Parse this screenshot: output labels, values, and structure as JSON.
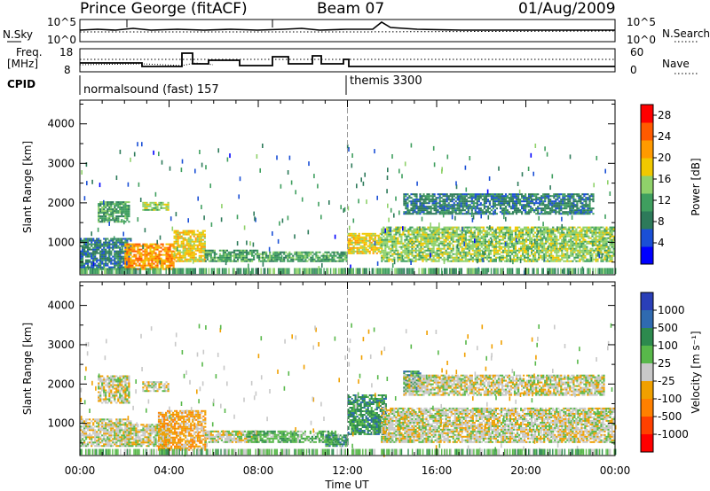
{
  "header": {
    "station": "Prince George (fitACF)",
    "beam": "Beam 07",
    "date": "01/Aug/2009"
  },
  "panels": {
    "nsky_label": "N.Sky",
    "nsearch_label": "N.Search",
    "nsky_ticks": [
      "10^5",
      "10^0"
    ],
    "nsearch_ticks": [
      "10^5",
      "10^0"
    ],
    "freq_label_1": "Freq.",
    "freq_label_2": "[MHz]",
    "freq_ticks": [
      "18",
      "8"
    ],
    "nave_label": "Nave",
    "nave_ticks": [
      "60",
      "0"
    ],
    "cpid_label": "CPID",
    "cpid_segments": [
      "normalsound (fast) 157",
      "themis 3300"
    ]
  },
  "colors": {
    "power_scale": [
      "#0000ff",
      "#1a4fd6",
      "#2d7a5a",
      "#3f9f5f",
      "#8fd16a",
      "#f0c800",
      "#ff9a00",
      "#ff5a00",
      "#ff0000"
    ],
    "velocity_scale": [
      "#2a3fb8",
      "#2f6ab0",
      "#2d8a4e",
      "#58b84a",
      "#c8c8c8",
      "#f0a000",
      "#ff8000",
      "#ff4000",
      "#ff0000"
    ]
  },
  "chart_data": [
    {
      "type": "heatmap",
      "name": "power",
      "xlabel": "",
      "ylabel": "Slant Range [km]",
      "x_ticks": [
        "00:00",
        "04:00",
        "08:00",
        "12:00",
        "16:00",
        "20:00",
        "00:00"
      ],
      "y_ticks": [
        1000,
        2000,
        3000,
        4000
      ],
      "ylim": [
        180,
        4600
      ],
      "xlim_hours": [
        0,
        24
      ],
      "colorbar_label": "Power [dB]",
      "colorbar_ticks": [
        4,
        8,
        12,
        16,
        20,
        24,
        28
      ],
      "colorbar_range": [
        0,
        30
      ],
      "echo_regions": [
        {
          "t0": 0.0,
          "t1": 2.3,
          "r0": 300,
          "r1": 1100,
          "v": 8
        },
        {
          "t0": 0.8,
          "t1": 2.2,
          "r0": 1500,
          "r1": 2000,
          "v": 12
        },
        {
          "t0": 2.0,
          "t1": 4.2,
          "r0": 300,
          "r1": 950,
          "v": 24
        },
        {
          "t0": 2.8,
          "t1": 4.0,
          "r0": 1800,
          "r1": 2000,
          "v": 16
        },
        {
          "t0": 4.2,
          "t1": 5.6,
          "r0": 500,
          "r1": 1300,
          "v": 18
        },
        {
          "t0": 5.6,
          "t1": 8.0,
          "r0": 500,
          "r1": 800,
          "v": 12
        },
        {
          "t0": 8.0,
          "t1": 12.0,
          "r0": 500,
          "r1": 750,
          "v": 10
        },
        {
          "t0": 12.0,
          "t1": 13.5,
          "r0": 700,
          "r1": 1200,
          "v": 18
        },
        {
          "t0": 13.5,
          "t1": 23.9,
          "r0": 500,
          "r1": 1400,
          "v": 16
        },
        {
          "t0": 14.5,
          "t1": 23.0,
          "r0": 1700,
          "r1": 2200,
          "v": 8
        }
      ]
    },
    {
      "type": "heatmap",
      "name": "velocity",
      "xlabel": "Time UT",
      "ylabel": "Slant Range [km]",
      "x_ticks": [
        "00:00",
        "04:00",
        "08:00",
        "12:00",
        "16:00",
        "20:00",
        "00:00"
      ],
      "y_ticks": [
        1000,
        2000,
        3000,
        4000
      ],
      "ylim": [
        180,
        4600
      ],
      "xlim_hours": [
        0,
        24
      ],
      "colorbar_label": "Velocity [m s⁻¹]",
      "colorbar_ticks": [
        "1000",
        "500",
        "100",
        "25",
        "-25",
        "-100",
        "-500",
        "-1000"
      ],
      "echo_regions": [
        {
          "t0": 0.0,
          "t1": 2.3,
          "r0": 400,
          "r1": 1100,
          "v": 4
        },
        {
          "t0": 0.8,
          "t1": 2.2,
          "r0": 1500,
          "r1": 2200,
          "v": 4
        },
        {
          "t0": 2.0,
          "t1": 4.0,
          "r0": 400,
          "r1": 950,
          "v": 4
        },
        {
          "t0": 3.5,
          "t1": 5.6,
          "r0": 300,
          "r1": 1300,
          "v": 5
        },
        {
          "t0": 2.8,
          "t1": 4.0,
          "r0": 1800,
          "r1": 2050,
          "v": 4
        },
        {
          "t0": 5.6,
          "t1": 8.0,
          "r0": 500,
          "r1": 800,
          "v": 4
        },
        {
          "t0": 7.5,
          "t1": 11.5,
          "r0": 500,
          "r1": 800,
          "v": 3
        },
        {
          "t0": 11.0,
          "t1": 12.0,
          "r0": 400,
          "r1": 700,
          "v": 2
        },
        {
          "t0": 12.0,
          "t1": 13.7,
          "r0": 700,
          "r1": 1700,
          "v": 2
        },
        {
          "t0": 14.5,
          "t1": 15.3,
          "r0": 1800,
          "r1": 2300,
          "v": 2
        },
        {
          "t0": 13.5,
          "t1": 23.9,
          "r0": 500,
          "r1": 1400,
          "v": 4
        },
        {
          "t0": 14.5,
          "t1": 23.5,
          "r0": 1700,
          "r1": 2200,
          "v": 4
        }
      ]
    }
  ]
}
